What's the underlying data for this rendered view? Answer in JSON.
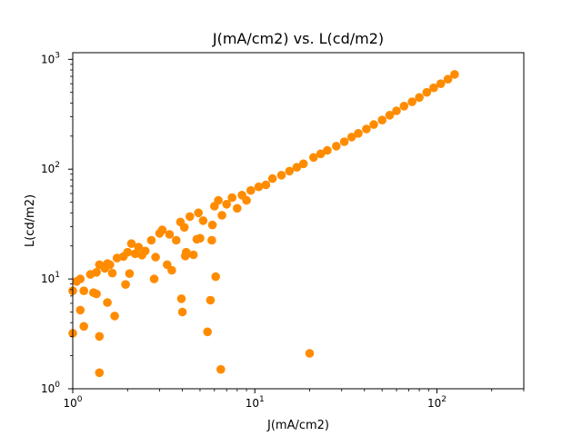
{
  "chart_data": {
    "type": "scatter",
    "title": "J(mA/cm2) vs. L(cd/m2)",
    "xlabel": "J(mA/cm2)",
    "ylabel": "L(cd/m2)",
    "x_scale": "log",
    "y_scale": "log",
    "xlim": [
      1,
      300
    ],
    "ylim": [
      1,
      1150
    ],
    "grid": false,
    "marker_color": "#ff8c00",
    "x_ticks": [
      {
        "value": 1,
        "base": "10",
        "exp": "0"
      },
      {
        "value": 10,
        "base": "10",
        "exp": "1"
      },
      {
        "value": 100,
        "base": "10",
        "exp": "2"
      }
    ],
    "y_ticks": [
      {
        "value": 1,
        "base": "10",
        "exp": "0"
      },
      {
        "value": 10,
        "base": "10",
        "exp": "1"
      },
      {
        "value": 100,
        "base": "10",
        "exp": "2"
      },
      {
        "value": 1000,
        "base": "10",
        "exp": "3"
      }
    ],
    "points": [
      [
        1.0,
        7.8
      ],
      [
        1.0,
        3.2
      ],
      [
        1.05,
        9.5
      ],
      [
        1.1,
        10.0
      ],
      [
        1.1,
        5.2
      ],
      [
        1.15,
        3.7
      ],
      [
        1.15,
        7.8
      ],
      [
        1.25,
        11.0
      ],
      [
        1.3,
        7.5
      ],
      [
        1.35,
        7.3
      ],
      [
        1.35,
        11.5
      ],
      [
        1.4,
        13.5
      ],
      [
        1.4,
        3.0
      ],
      [
        1.4,
        1.4
      ],
      [
        1.5,
        12.5
      ],
      [
        1.55,
        6.1
      ],
      [
        1.55,
        13.8
      ],
      [
        1.6,
        13.5
      ],
      [
        1.65,
        11.3
      ],
      [
        1.7,
        4.6
      ],
      [
        1.75,
        15.5
      ],
      [
        1.9,
        16.0
      ],
      [
        1.95,
        8.9
      ],
      [
        2.0,
        17.5
      ],
      [
        2.05,
        11.2
      ],
      [
        2.1,
        21.0
      ],
      [
        2.2,
        17.0
      ],
      [
        2.3,
        19.5
      ],
      [
        2.4,
        16.5
      ],
      [
        2.5,
        18.0
      ],
      [
        2.7,
        22.5
      ],
      [
        2.8,
        10.0
      ],
      [
        2.85,
        15.8
      ],
      [
        3.0,
        26.0
      ],
      [
        3.1,
        28.0
      ],
      [
        3.3,
        13.5
      ],
      [
        3.4,
        25.5
      ],
      [
        3.5,
        12.0
      ],
      [
        3.7,
        22.5
      ],
      [
        3.9,
        33.0
      ],
      [
        3.95,
        6.6
      ],
      [
        4.0,
        5.0
      ],
      [
        4.1,
        29.5
      ],
      [
        4.15,
        16.2
      ],
      [
        4.2,
        17.5
      ],
      [
        4.4,
        37.0
      ],
      [
        4.6,
        16.6
      ],
      [
        4.8,
        23.0
      ],
      [
        4.9,
        40.0
      ],
      [
        5.0,
        23.5
      ],
      [
        5.2,
        34.0
      ],
      [
        5.5,
        3.3
      ],
      [
        5.7,
        6.4
      ],
      [
        5.8,
        22.5
      ],
      [
        5.85,
        31.0
      ],
      [
        6.0,
        46.0
      ],
      [
        6.1,
        10.5
      ],
      [
        6.3,
        52.0
      ],
      [
        6.5,
        1.5
      ],
      [
        6.6,
        38.0
      ],
      [
        7.0,
        48.0
      ],
      [
        7.5,
        55.0
      ],
      [
        8.0,
        44.0
      ],
      [
        8.5,
        58.0
      ],
      [
        9.0,
        52.0
      ],
      [
        9.5,
        64.0
      ],
      [
        10.5,
        69.0
      ],
      [
        11.5,
        72.0
      ],
      [
        12.5,
        82.0
      ],
      [
        14.0,
        88.0
      ],
      [
        15.5,
        96.0
      ],
      [
        17.0,
        104.0
      ],
      [
        18.5,
        112.0
      ],
      [
        20.0,
        2.1
      ],
      [
        21.0,
        128.0
      ],
      [
        23.0,
        138.0
      ],
      [
        25.0,
        148.0
      ],
      [
        28.0,
        162.0
      ],
      [
        31.0,
        178.0
      ],
      [
        34.0,
        196.0
      ],
      [
        37.0,
        212.0
      ],
      [
        41.0,
        232.0
      ],
      [
        45.0,
        255.0
      ],
      [
        50.0,
        280.0
      ],
      [
        55.0,
        310.0
      ],
      [
        60.0,
        340.0
      ],
      [
        66.0,
        375.0
      ],
      [
        73.0,
        410.0
      ],
      [
        80.0,
        450.0
      ],
      [
        88.0,
        500.0
      ],
      [
        96.0,
        550.0
      ],
      [
        105.0,
        600.0
      ],
      [
        115.0,
        660.0
      ],
      [
        125.0,
        730.0
      ]
    ]
  }
}
